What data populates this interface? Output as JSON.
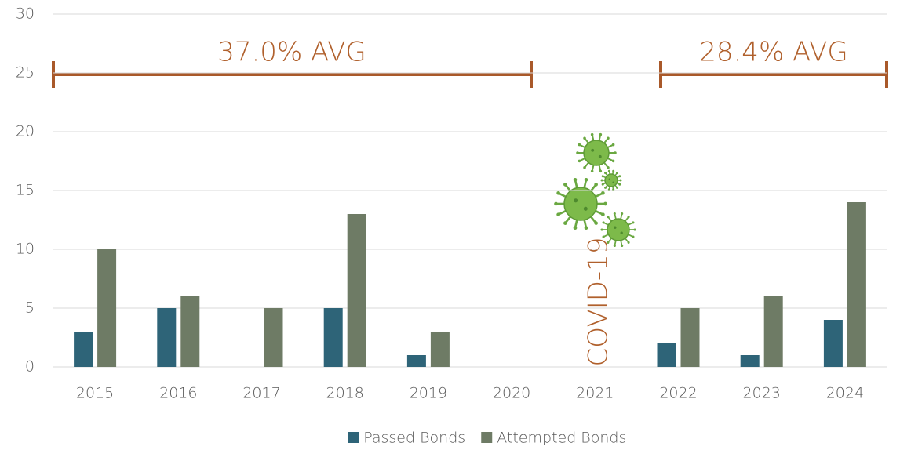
{
  "chart_data": {
    "type": "bar",
    "categories": [
      "2015",
      "2016",
      "2017",
      "2018",
      "2019",
      "2020",
      "2021",
      "2022",
      "2023",
      "2024"
    ],
    "series": [
      {
        "name": "Passed Bonds",
        "color": "#2e6478",
        "values": [
          3,
          5,
          0,
          5,
          1,
          0,
          0,
          2,
          1,
          4
        ]
      },
      {
        "name": "Attempted Bonds",
        "color": "#6e7b65",
        "values": [
          10,
          6,
          5,
          13,
          3,
          0,
          0,
          5,
          6,
          14
        ]
      }
    ],
    "ylim": [
      0,
      30
    ],
    "yticks": [
      0,
      5,
      10,
      15,
      20,
      25,
      30
    ],
    "grid": true,
    "legend": "bottom",
    "annotations": [
      "37.0% AVG",
      "28.4% AVG",
      "COVID-19"
    ]
  }
}
